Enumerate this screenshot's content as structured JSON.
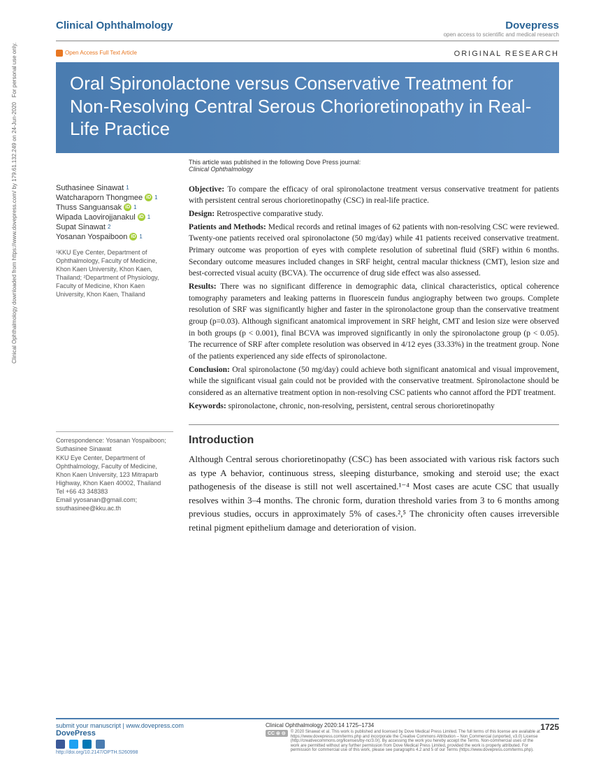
{
  "header": {
    "journal": "Clinical Ophthalmology",
    "publisher": "Dovepress",
    "publisher_tag": "open access to scientific and medical research",
    "oa_badge": "Open Access Full Text Article",
    "article_type": "ORIGINAL RESEARCH"
  },
  "title": "Oral Spironolactone versus Conservative Treatment for Non-Resolving Central Serous Chorioretinopathy in Real-Life Practice",
  "pub_note_line1": "This article was published in the following Dove Press journal:",
  "pub_note_line2": "Clinical Ophthalmology",
  "authors": [
    {
      "name": "Suthasinee Sinawat",
      "aff": "1",
      "orcid": false
    },
    {
      "name": "Watcharaporn Thongmee",
      "aff": "1",
      "orcid": true
    },
    {
      "name": "Thuss Sanguansak",
      "aff": "1",
      "orcid": true
    },
    {
      "name": "Wipada Laovirojjanakul",
      "aff": "1",
      "orcid": true
    },
    {
      "name": "Supat Sinawat",
      "aff": "2",
      "orcid": false
    },
    {
      "name": "Yosanan Yospaiboon",
      "aff": "1",
      "orcid": true
    }
  ],
  "affiliations": "¹KKU Eye Center, Department of Ophthalmology, Faculty of Medicine, Khon Kaen University, Khon Kaen, Thailand; ²Department of Physiology, Faculty of Medicine, Khon Kaen University, Khon Kaen, Thailand",
  "correspondence": "Correspondence: Yosanan Yospaiboon; Suthasinee Sinawat\nKKU Eye Center, Department of Ophthalmology, Faculty of Medicine, Khon Kaen University, 123 Mitraparb Highway, Khon Kaen 40002, Thailand\nTel +66 43 348383\nEmail yyosanan@gmail.com; ssuthasinee@kku.ac.th",
  "abstract": {
    "objective": "To compare the efficacy of oral spironolactone treatment versus conservative treatment for patients with persistent central serous chorioretinopathy (CSC) in real-life practice.",
    "design": "Retrospective comparative study.",
    "patients_methods": "Medical records and retinal images of 62 patients with non-resolving CSC were reviewed. Twenty-one patients received oral spironolactone (50 mg/day) while 41 patients received conservative treatment. Primary outcome was proportion of eyes with complete resolution of subretinal fluid (SRF) within 6 months. Secondary outcome measures included changes in SRF height, central macular thickness (CMT), lesion size and best-corrected visual acuity (BCVA). The occurrence of drug side effect was also assessed.",
    "results": "There was no significant difference in demographic data, clinical characteristics, optical coherence tomography parameters and leaking patterns in fluorescein fundus angiography between two groups. Complete resolution of SRF was significantly higher and faster in the spironolactone group than the conservative treatment group (p=0.03). Although significant anatomical improvement in SRF height, CMT and lesion size were observed in both groups (p < 0.001), final BCVA was improved significantly in only the spironolactone group (p < 0.05). The recurrence of SRF after complete resolution was observed in 4/12 eyes (33.33%) in the treatment group. None of the patients experienced any side effects of spironolactone.",
    "conclusion": "Oral spironolactone (50 mg/day) could achieve both significant anatomical and visual improvement, while the significant visual gain could not be provided with the conservative treatment. Spironolactone should be considered as an alternative treatment option in non-resolving CSC patients who cannot afford the PDT treatment.",
    "keywords": "spironolactone, chronic, non-resolving, persistent, central serous chorioretinopathy"
  },
  "intro_heading": "Introduction",
  "intro_body": "Although Central serous chorioretinopathy (CSC) has been associated with various risk factors such as type A behavior, continuous stress, sleeping disturbance, smoking and steroid use; the exact pathogenesis of the disease is still not well ascertained.¹⁻⁴ Most cases are acute CSC that usually resolves within 3–4 months. The chronic form, duration threshold varies from 3 to 6 months among previous studies, occurs in approximately 5% of cases.²,⁵ The chronicity often causes irreversible retinal pigment epithelium damage and deterioration of vision.",
  "side_note": "Clinical Ophthalmology downloaded from https://www.dovepress.com/ by 179.61.132.249 on 24-Jun-2020\nFor personal use only.",
  "footer": {
    "submit": "submit your manuscript | www.dovepress.com",
    "dovepress": "DovePress",
    "citation": "Clinical Ophthalmology 2020:14 1725–1734",
    "page_num": "1725",
    "doi": "http://doi.org/10.2147/OPTH.S260998",
    "cc_text": "© 2020 Sinawat et al. This work is published and licensed by Dove Medical Press Limited. The full terms of this license are available at https://www.dovepress.com/terms.php and incorporate the Creative Commons Attribution – Non Commercial (unported, v3.0) License (http://creativecommons.org/licenses/by-nc/3.0/). By accessing the work you hereby accept the Terms. Non-commercial uses of the work are permitted without any further permission from Dove Medical Press Limited, provided the work is properly attributed. For permission for commercial use of this work, please see paragraphs 4.2 and 5 of our Terms (https://www.dovepress.com/terms.php)."
  },
  "colors": {
    "brand_blue": "#2a6496",
    "title_bg": "#4a7cb0",
    "orcid_green": "#a6ce39",
    "orange": "#e87722"
  }
}
